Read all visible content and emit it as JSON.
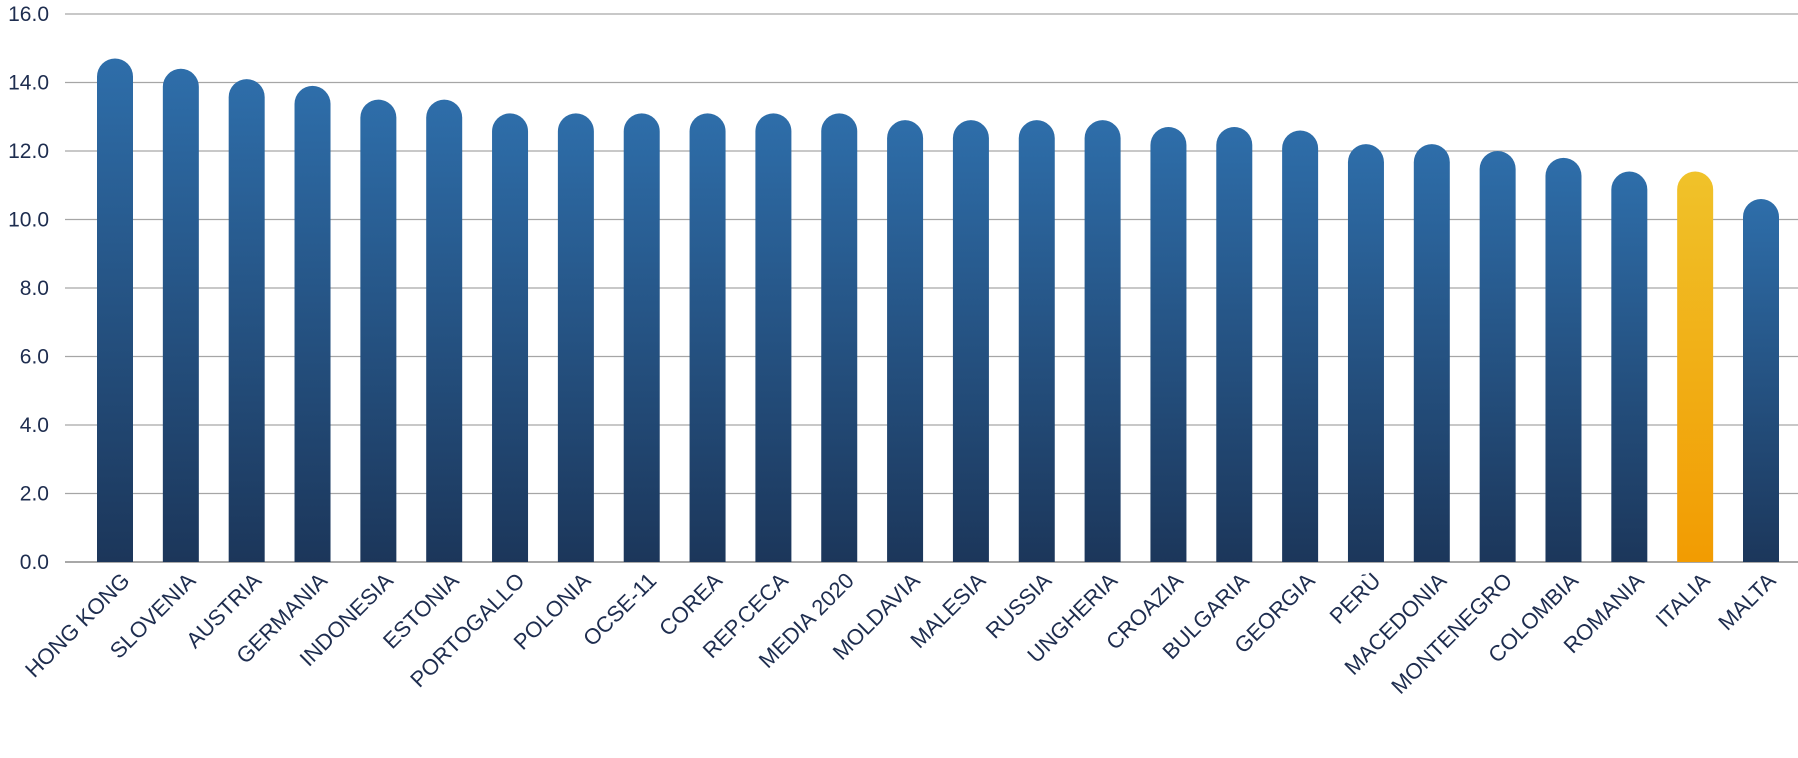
{
  "chart_data": {
    "type": "bar",
    "title": "",
    "xlabel": "",
    "ylabel": "",
    "ylim": [
      0,
      16
    ],
    "yticks": [
      "0.0",
      "2.0",
      "4.0",
      "6.0",
      "8.0",
      "10.0",
      "12.0",
      "14.0",
      "16.0"
    ],
    "grid": "horizontal",
    "legend": "none",
    "categories": [
      "HONG KONG",
      "SLOVENIA",
      "AUSTRIA",
      "GERMANIA",
      "INDONESIA",
      "ESTONIA",
      "PORTOGALLO",
      "POLONIA",
      "OCSE-11",
      "COREA",
      "REP.CECA",
      "MEDIA 2020",
      "MOLDAVIA",
      "MALESIA",
      "RUSSIA",
      "UNGHERIA",
      "CROAZIA",
      "BULGARIA",
      "GEORGIA",
      "PERÙ",
      "MACEDONIA",
      "MONTENEGRO",
      "COLOMBIA",
      "ROMANIA",
      "ITALIA",
      "MALTA"
    ],
    "values": [
      14.7,
      14.4,
      14.1,
      13.9,
      13.5,
      13.5,
      13.1,
      13.1,
      13.1,
      13.1,
      13.1,
      13.1,
      12.9,
      12.9,
      12.9,
      12.9,
      12.7,
      12.7,
      12.6,
      12.2,
      12.2,
      12.0,
      11.8,
      11.4,
      11.4,
      10.6
    ],
    "highlight": "ITALIA",
    "colors": {
      "bar_top": "#2e6eaa",
      "bar_bottom": "#1b3457",
      "highlight_top": "#f0c22a",
      "highlight_bottom": "#f29a00",
      "grid": "#a6a6a6",
      "text": "#1e2d4f"
    }
  }
}
